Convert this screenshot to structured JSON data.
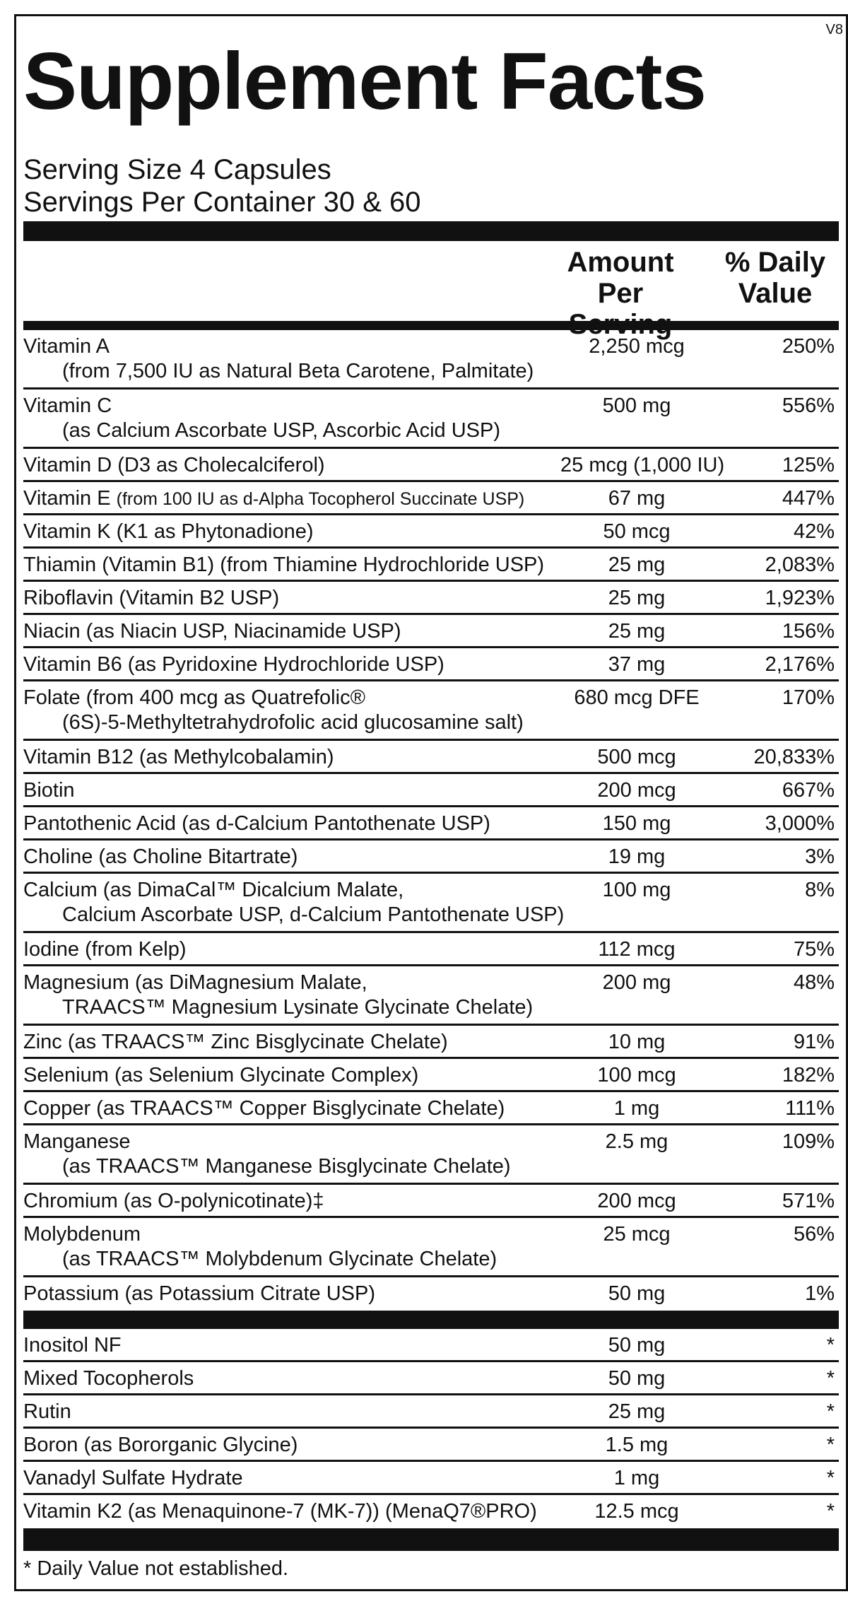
{
  "label": {
    "version": "V8",
    "title": "Supplement Facts",
    "serving": [
      "Serving Size 4 Capsules",
      "Servings Per Container 30 & 60"
    ],
    "header": {
      "amount": [
        "Amount",
        "Per Serving"
      ],
      "daily_value": [
        "% Daily",
        "Value"
      ]
    },
    "sections": [
      {
        "rows": [
          {
            "name": "Vitamin A",
            "sub": "(from 7,500 IU as Natural Beta Carotene, Palmitate)",
            "amount": "2,250 mcg",
            "dv": "250%"
          },
          {
            "name": "Vitamin C",
            "sub": "(as Calcium Ascorbate USP, Ascorbic Acid USP)",
            "amount": "500 mg",
            "dv": "556%"
          },
          {
            "name": "Vitamin D (D3 as Cholecalciferol)",
            "amount": "25 mcg (1,000 IU)",
            "dv": "125%"
          },
          {
            "name": "Vitamin E",
            "detail": "(from 100 IU as d-Alpha Tocopherol Succinate USP)",
            "amount": "67 mg",
            "dv": "447%"
          },
          {
            "name": "Vitamin K (K1 as Phytonadione)",
            "amount": "50 mcg",
            "dv": "42%"
          },
          {
            "name": "Thiamin (Vitamin B1) (from Thiamine Hydrochloride USP)",
            "amount": "25 mg",
            "dv": "2,083%"
          },
          {
            "name": "Riboflavin (Vitamin B2 USP)",
            "amount": "25 mg",
            "dv": "1,923%"
          },
          {
            "name": "Niacin (as Niacin USP, Niacinamide USP)",
            "amount": "25 mg",
            "dv": "156%"
          },
          {
            "name": "Vitamin B6 (as Pyridoxine Hydrochloride USP)",
            "amount": "37 mg",
            "dv": "2,176%"
          },
          {
            "name": "Folate (from 400 mcg as Quatrefolic®",
            "sub": "(6S)-5-Methyltetrahydrofolic acid glucosamine salt)",
            "amount": "680 mcg DFE",
            "dv": "170%"
          },
          {
            "name": "Vitamin B12 (as Methylcobalamin)",
            "amount": "500 mcg",
            "dv": "20,833%"
          },
          {
            "name": "Biotin",
            "amount": "200 mcg",
            "dv": "667%"
          },
          {
            "name": "Pantothenic Acid (as d-Calcium Pantothenate USP)",
            "amount": "150 mg",
            "dv": "3,000%"
          },
          {
            "name": "Choline (as Choline Bitartrate)",
            "amount": "19 mg",
            "dv": "3%"
          },
          {
            "name": "Calcium (as DimaCal™ Dicalcium Malate,",
            "sub": "Calcium Ascorbate USP, d-Calcium Pantothenate USP)",
            "amount": "100 mg",
            "dv": "8%"
          },
          {
            "name": "Iodine (from Kelp)",
            "amount": "112 mcg",
            "dv": "75%"
          },
          {
            "name": "Magnesium (as DiMagnesium Malate,",
            "sub": "TRAACS™ Magnesium Lysinate Glycinate Chelate)",
            "amount": "200 mg",
            "dv": "48%"
          },
          {
            "name": "Zinc (as TRAACS™ Zinc Bisglycinate Chelate)",
            "amount": "10 mg",
            "dv": "91%"
          },
          {
            "name": "Selenium (as Selenium Glycinate Complex)",
            "amount": "100 mcg",
            "dv": "182%"
          },
          {
            "name": "Copper (as TRAACS™ Copper Bisglycinate Chelate)",
            "amount": "1 mg",
            "dv": "111%"
          },
          {
            "name": "Manganese",
            "sub": "(as TRAACS™ Manganese Bisglycinate Chelate)",
            "amount": "2.5 mg",
            "dv": "109%"
          },
          {
            "name": "Chromium (as O-polynicotinate)‡",
            "amount": "200 mcg",
            "dv": "571%"
          },
          {
            "name": "Molybdenum",
            "sub": "(as TRAACS™ Molybdenum Glycinate Chelate)",
            "amount": "25 mcg",
            "dv": "56%"
          },
          {
            "name": "Potassium (as Potassium Citrate USP)",
            "amount": "50 mg",
            "dv": "1%"
          }
        ]
      },
      {
        "rows": [
          {
            "name": "Inositol NF",
            "amount": "50 mg",
            "dv": "*"
          },
          {
            "name": "Mixed Tocopherols",
            "amount": "50 mg",
            "dv": "*"
          },
          {
            "name": "Rutin",
            "amount": "25 mg",
            "dv": "*"
          },
          {
            "name": "Boron (as Bororganic Glycine)",
            "amount": "1.5 mg",
            "dv": "*"
          },
          {
            "name": "Vanadyl Sulfate Hydrate",
            "amount": "1 mg",
            "dv": "*"
          },
          {
            "name": "Vitamin K2 (as Menaquinone-7 (MK-7)) (MenaQ7®PRO)",
            "amount": "12.5 mcg",
            "dv": "*"
          }
        ]
      }
    ],
    "footnote": "* Daily Value not established."
  }
}
